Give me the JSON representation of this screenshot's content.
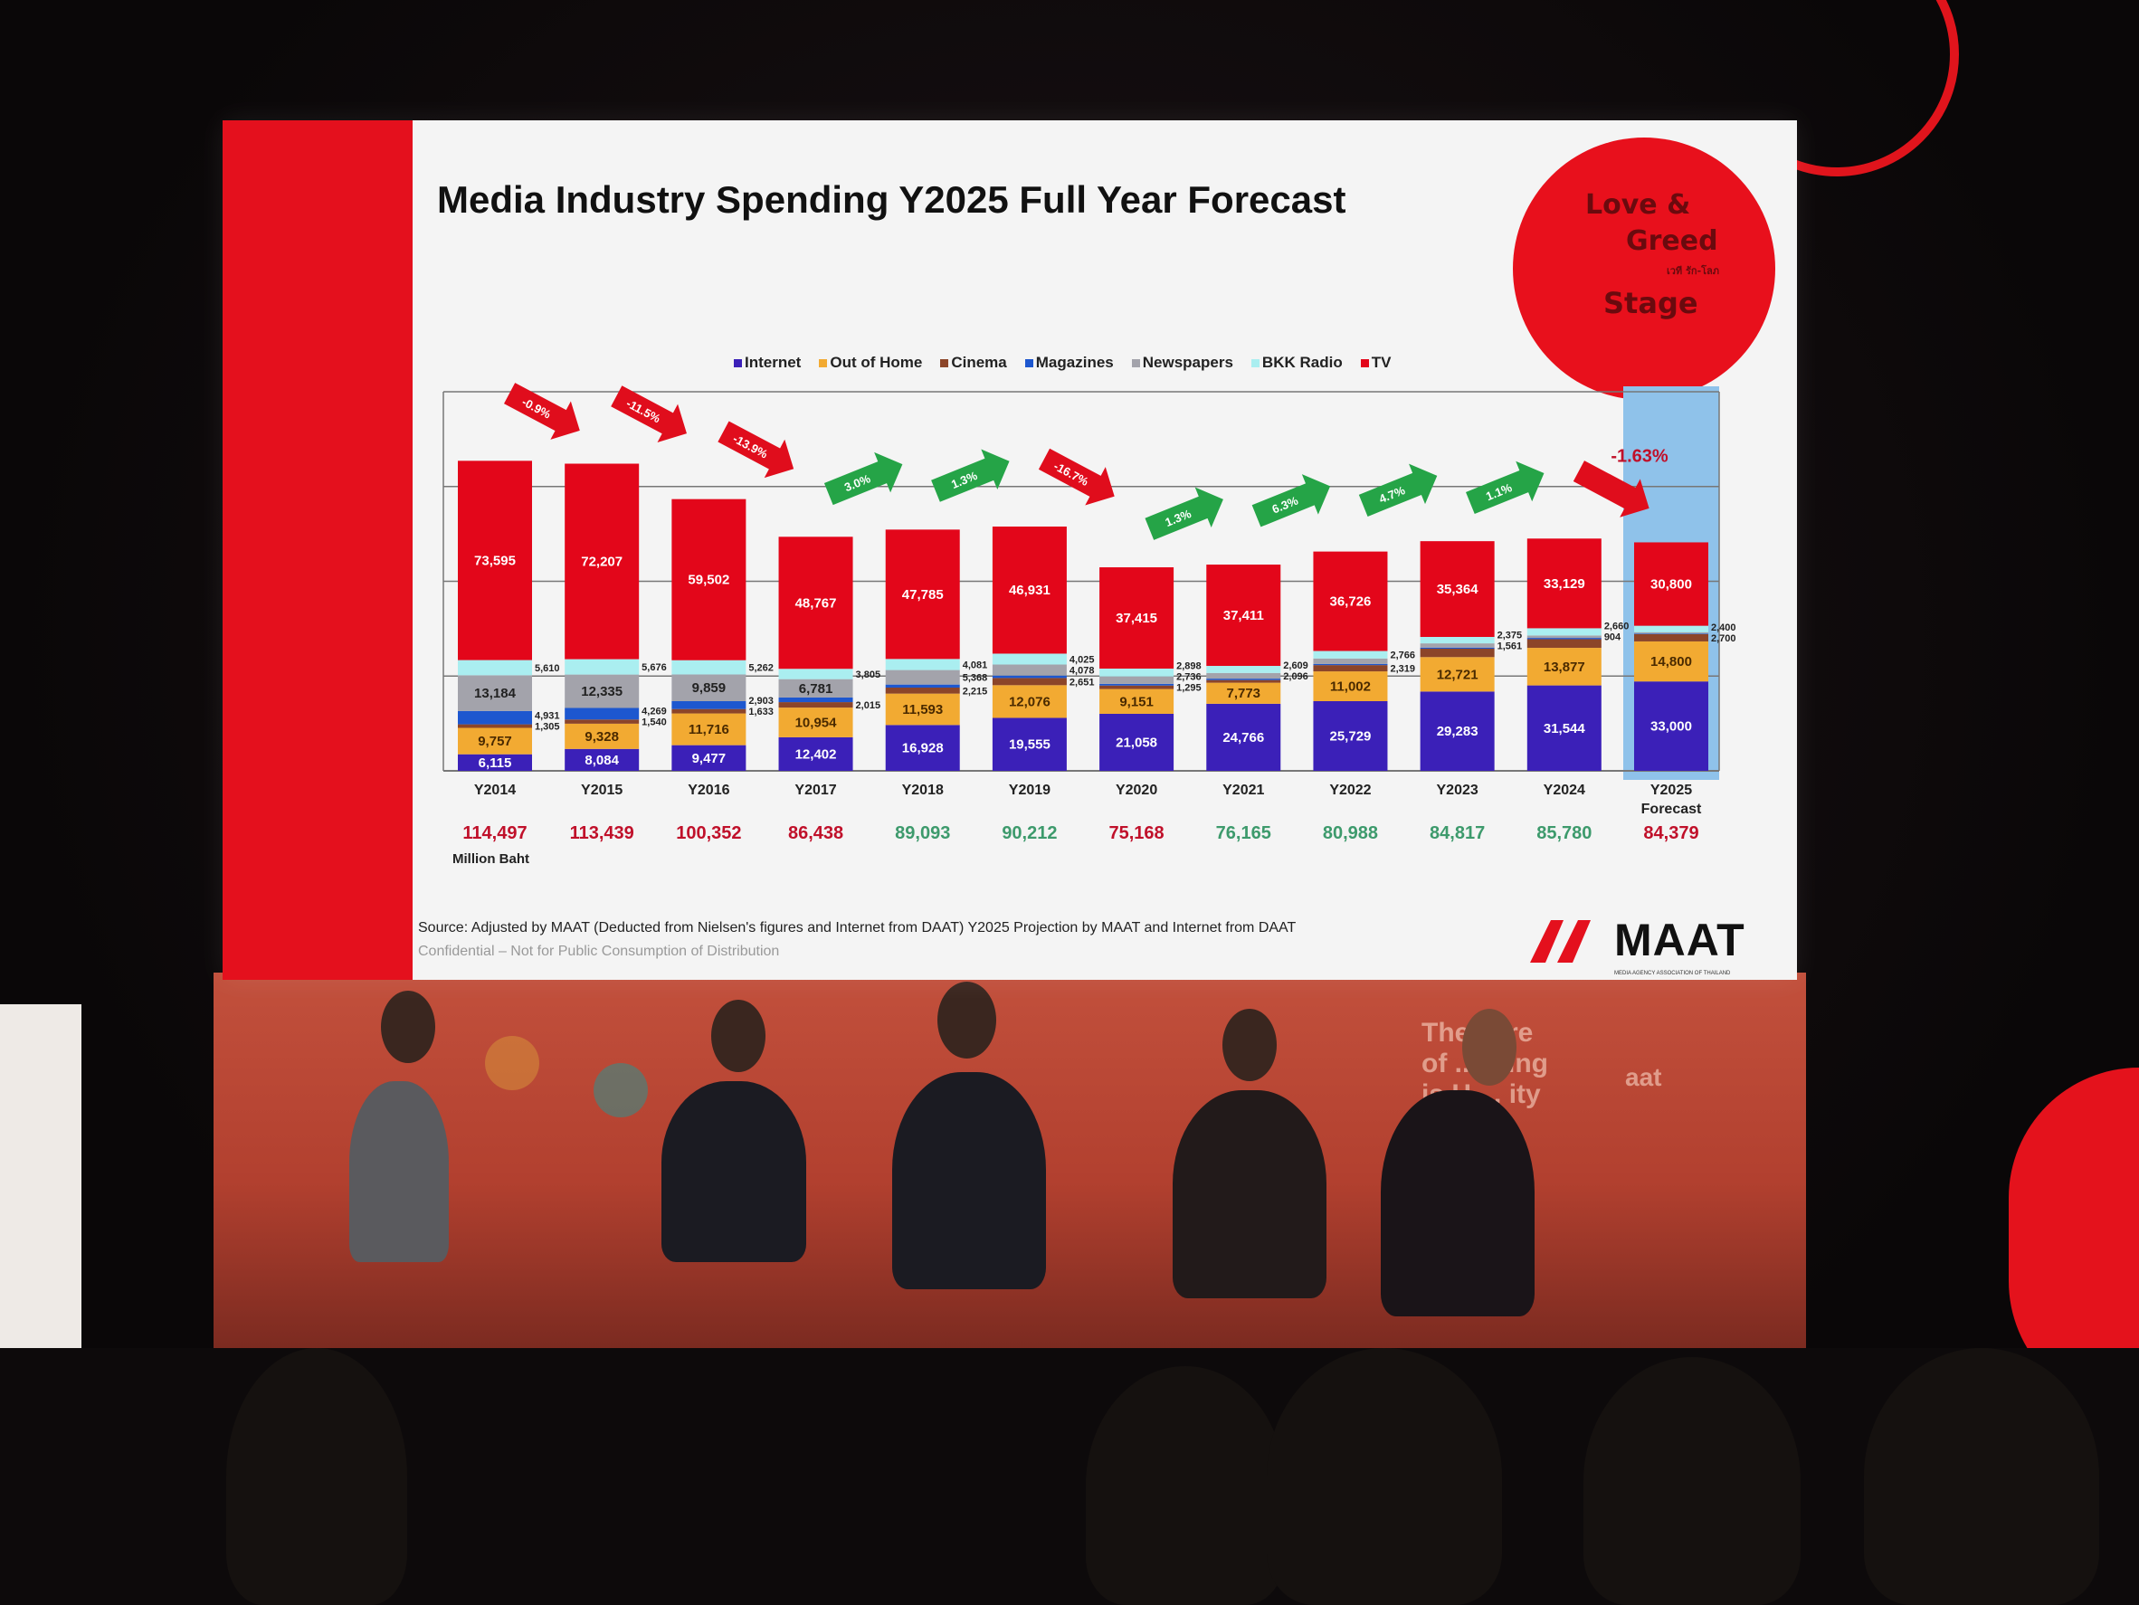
{
  "slide": {
    "title": "Media Industry Spending Y2025 Full Year Forecast",
    "unit_label": "Million Baht",
    "source": "Source: Adjusted by MAAT (Deducted  from Nielsen's figures and Internet from DAAT) Y2025 Projection by MAAT and Internet from DAAT",
    "confidential": "Confidential – Not for Public Consumption of Distribution",
    "maat_logo": "MAAT",
    "maat_subtitle": "MEDIA AGENCY ASSOCIATION OF THAILAND",
    "event_logo": {
      "line1": "Love &",
      "line2": "Greed",
      "line3": "Stage",
      "thai": "เวที รัก-โลภ"
    }
  },
  "backdrop": {
    "aat_label": "aat"
  },
  "colors": {
    "Internet": "#3b20b8",
    "Out of Home": "#f2aa32",
    "Cinema": "#8c4529",
    "Magazines": "#1d57cf",
    "Newspapers": "#a3a3ab",
    "BKK Radio": "#aaeef0",
    "TV": "#e3061a",
    "up": "#25a447",
    "down": "#e00d1c",
    "total_down": "#c0102a",
    "total_up": "#3d9a6c"
  },
  "chart_data": {
    "type": "bar",
    "stacked": true,
    "title": "Media Industry Spending Y2025 Full Year Forecast",
    "ylabel": "Million Baht",
    "ylim": [
      0,
      140000
    ],
    "legend_position": "top-center",
    "categories": [
      "Y2014",
      "Y2015",
      "Y2016",
      "Y2017",
      "Y2018",
      "Y2019",
      "Y2020",
      "Y2021",
      "Y2022",
      "Y2023",
      "Y2024",
      "Y2025 Forecast"
    ],
    "series": [
      {
        "name": "Internet",
        "values": [
          6115,
          8084,
          9477,
          12402,
          16928,
          19555,
          21058,
          24766,
          25729,
          29283,
          31544,
          33000
        ]
      },
      {
        "name": "Out of Home",
        "values": [
          9757,
          9328,
          11716,
          10954,
          11593,
          12076,
          9151,
          7773,
          11002,
          12721,
          13877,
          14800
        ]
      },
      {
        "name": "Cinema",
        "values": [
          1305,
          1540,
          1633,
          2015,
          2215,
          2651,
          1295,
          1000,
          2319,
          3100,
          3200,
          2700
        ]
      },
      {
        "name": "Magazines",
        "values": [
          4931,
          4269,
          2903,
          1714,
          1123,
          896,
          615,
          510,
          446,
          413,
          466,
          200
        ]
      },
      {
        "name": "Newspapers",
        "values": [
          13184,
          12335,
          9859,
          6781,
          5368,
          4078,
          2736,
          2096,
          2000,
          1561,
          904,
          479
        ]
      },
      {
        "name": "BKK Radio",
        "values": [
          5610,
          5676,
          5262,
          3805,
          4081,
          4025,
          2898,
          2609,
          2766,
          2375,
          2660,
          2400
        ]
      },
      {
        "name": "TV",
        "values": [
          73595,
          72207,
          59502,
          48767,
          47785,
          46931,
          37415,
          37411,
          36726,
          35364,
          33129,
          30800
        ]
      }
    ],
    "labels": [
      [
        "6,115",
        "9,757",
        "1,305",
        "4,931",
        "13,184",
        "5,610",
        "73,595"
      ],
      [
        "8,084",
        "9,328",
        "1,540",
        "4,269",
        "12,335",
        "5,676",
        "72,207"
      ],
      [
        "9,477",
        "11,716",
        "1,633",
        "2,903",
        "9,859",
        "5,262",
        "59,502"
      ],
      [
        "12,402",
        "10,954",
        "2,015",
        null,
        "6,781",
        "3,805",
        "48,767"
      ],
      [
        "16,928",
        "11,593",
        "2,215",
        null,
        "5,368",
        "4,081",
        "47,785"
      ],
      [
        "19,555",
        "12,076",
        "2,651",
        null,
        "4,078",
        "4,025",
        "46,931"
      ],
      [
        "21,058",
        "9,151",
        "1,295",
        null,
        "2,736",
        "2,898",
        "37,415"
      ],
      [
        "24,766",
        "7,773",
        null,
        null,
        "2,096",
        "2,609",
        "37,411"
      ],
      [
        "25,729",
        "11,002",
        "2,319",
        null,
        null,
        "2,766",
        "36,726"
      ],
      [
        "29,283",
        "12,721",
        null,
        null,
        "1,561",
        "2,375",
        "35,364"
      ],
      [
        "31,544",
        "13,877",
        null,
        null,
        "904",
        "2,660",
        "33,129"
      ],
      [
        "33,000",
        "14,800",
        "2,700",
        null,
        null,
        "2,400",
        "30,800"
      ]
    ],
    "totals": [
      "114,497",
      "113,439",
      "100,352",
      "86,438",
      "89,093",
      "90,212",
      "75,168",
      "76,165",
      "80,988",
      "84,817",
      "85,780",
      "84,379"
    ],
    "totals_trend": [
      "down",
      "down",
      "down",
      "down",
      "up",
      "up",
      "down",
      "up",
      "up",
      "up",
      "up",
      "down"
    ],
    "growth": [
      {
        "label": "-0.9%",
        "dir": "down"
      },
      {
        "label": "-11.5%",
        "dir": "down"
      },
      {
        "label": "-13.9%",
        "dir": "down"
      },
      {
        "label": "3.0%",
        "dir": "up"
      },
      {
        "label": "1.3%",
        "dir": "up"
      },
      {
        "label": "-16.7%",
        "dir": "down"
      },
      {
        "label": "1.3%",
        "dir": "up"
      },
      {
        "label": "6.3%",
        "dir": "up"
      },
      {
        "label": "4.7%",
        "dir": "up"
      },
      {
        "label": "1.1%",
        "dir": "up"
      },
      {
        "label": "-1.63%",
        "dir": "down"
      }
    ]
  }
}
